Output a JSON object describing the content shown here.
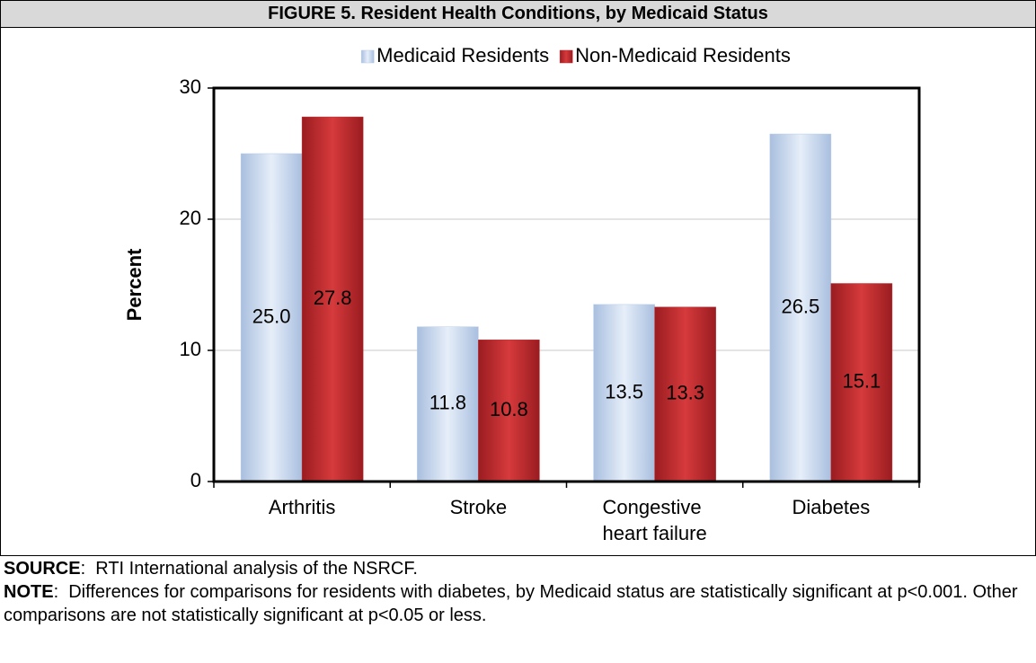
{
  "chart_data": {
    "type": "bar",
    "title": "FIGURE 5. Resident Health Conditions, by Medicaid Status",
    "y_label": "Percent",
    "categories": [
      "Arthritis",
      "Stroke",
      "Congestive heart failure",
      "Diabetes"
    ],
    "series": [
      {
        "name": "Medicaid Residents",
        "color": "#b8cce6",
        "values": [
          25.0,
          11.8,
          13.5,
          26.5
        ],
        "value_labels": [
          "25.0",
          "11.8",
          "13.5",
          "26.5"
        ]
      },
      {
        "name": "Non-Medicaid Residents",
        "color": "#c0282e",
        "values": [
          27.8,
          10.8,
          13.3,
          15.1
        ]
      }
    ],
    "ylim": [
      0,
      30
    ],
    "yticks": [
      0,
      10,
      20,
      30
    ],
    "grid": true,
    "legend": "top"
  },
  "notes": [
    {
      "label": "SOURCE",
      "text": ":  RTI International analysis of the NSRCF."
    },
    {
      "label": "NOTE",
      "text": ":  Differences for comparisons for residents with diabetes, by Medicaid status are statistically significant at p<0.001. Other comparisons are not statistically significant at p<0.05 or less."
    }
  ]
}
